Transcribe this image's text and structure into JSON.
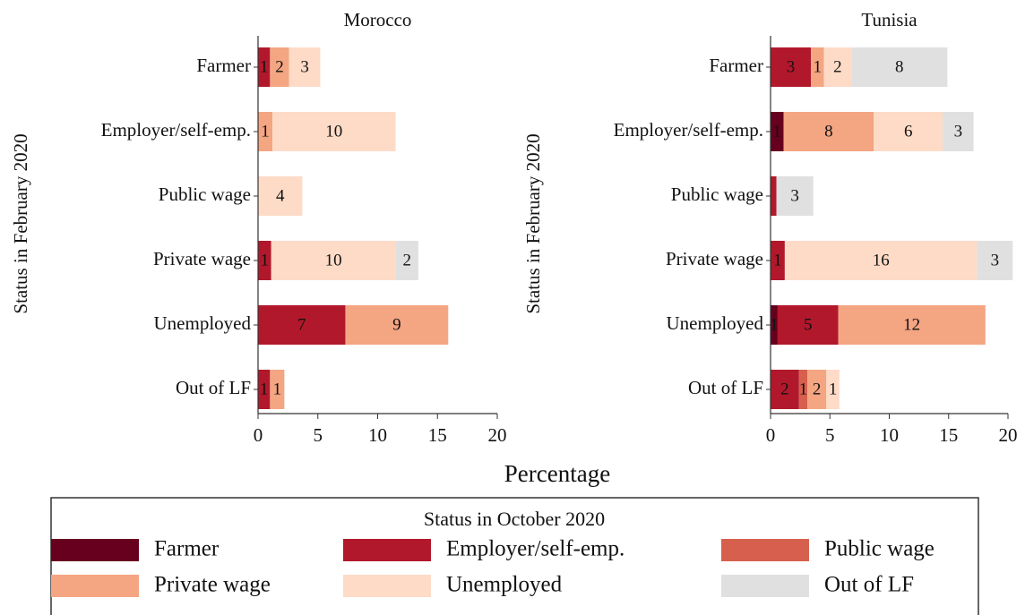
{
  "xlabel": "Percentage",
  "legend_title": "Status in October 2020",
  "chart_data": [
    {
      "type": "stacked-barh",
      "title": "Morocco",
      "ylabel": "Status in February 2020",
      "categories": [
        "Farmer",
        "Employer/self-emp.",
        "Public wage",
        "Private wage",
        "Unemployed",
        "Out of LF"
      ],
      "xlim": [
        0,
        20
      ],
      "xticks": [
        0,
        5,
        10,
        15,
        20
      ],
      "series": [
        {
          "name": "Farmer",
          "color": "#67001f",
          "values": [
            null,
            null,
            null,
            null,
            null,
            null
          ],
          "value_labels": [
            null,
            null,
            null,
            null,
            null,
            null
          ]
        },
        {
          "name": "Employer/self-emp.",
          "color": "#b2182b",
          "values": [
            1.0,
            null,
            null,
            1.1,
            7.3,
            1.0
          ],
          "value_labels": [
            "1",
            null,
            null,
            "1",
            "7",
            "1"
          ]
        },
        {
          "name": "Public wage",
          "color": "#d6604d",
          "values": [
            null,
            null,
            null,
            null,
            null,
            null
          ],
          "value_labels": [
            null,
            null,
            null,
            null,
            null,
            null
          ]
        },
        {
          "name": "Private wage",
          "color": "#f4a582",
          "values": [
            1.6,
            1.2,
            null,
            null,
            8.6,
            1.2
          ],
          "value_labels": [
            "2",
            "1",
            null,
            null,
            "9",
            "1"
          ]
        },
        {
          "name": "Unemployed",
          "color": "#fddbc7",
          "values": [
            2.6,
            10.3,
            3.7,
            10.4,
            null,
            null
          ],
          "value_labels": [
            "3",
            "10",
            "4",
            "10",
            null,
            null
          ]
        },
        {
          "name": "Out of LF",
          "color": "#e0e0e0",
          "values": [
            null,
            null,
            null,
            1.9,
            null,
            null
          ],
          "value_labels": [
            null,
            null,
            null,
            "2",
            null,
            null
          ]
        }
      ]
    },
    {
      "type": "stacked-barh",
      "title": "Tunisia",
      "ylabel": "Status in February 2020",
      "categories": [
        "Farmer",
        "Employer/self-emp.",
        "Public wage",
        "Private wage",
        "Unemployed",
        "Out of LF"
      ],
      "xlim": [
        0,
        20
      ],
      "xticks": [
        0,
        5,
        10,
        15,
        20
      ],
      "series": [
        {
          "color": "#67001f",
          "values": [
            null,
            1.1,
            null,
            null,
            0.6,
            null
          ],
          "value_labels": [
            null,
            "1",
            null,
            null,
            "1",
            null
          ]
        },
        {
          "color": "#b2182b",
          "values": [
            3.4,
            null,
            0.5,
            1.2,
            5.1,
            2.4
          ],
          "value_labels": [
            "3",
            null,
            null,
            "1",
            "5",
            "2"
          ]
        },
        {
          "color": "#d6604d",
          "values": [
            null,
            null,
            null,
            null,
            null,
            0.7
          ],
          "value_labels": [
            null,
            null,
            null,
            null,
            null,
            "1"
          ]
        },
        {
          "color": "#f4a582",
          "values": [
            1.1,
            7.6,
            null,
            null,
            12.4,
            1.6
          ],
          "value_labels": [
            "1",
            "8",
            null,
            null,
            "12",
            "2"
          ]
        },
        {
          "color": "#fddbc7",
          "values": [
            2.3,
            5.8,
            null,
            16.2,
            null,
            1.1
          ],
          "value_labels": [
            "2",
            "6",
            null,
            "16",
            null,
            "1"
          ]
        },
        {
          "color": "#e0e0e0",
          "values": [
            8.1,
            2.6,
            3.1,
            3.0,
            null,
            null
          ],
          "value_labels": [
            "8",
            "3",
            "3",
            "3",
            null,
            null
          ]
        }
      ]
    }
  ]
}
